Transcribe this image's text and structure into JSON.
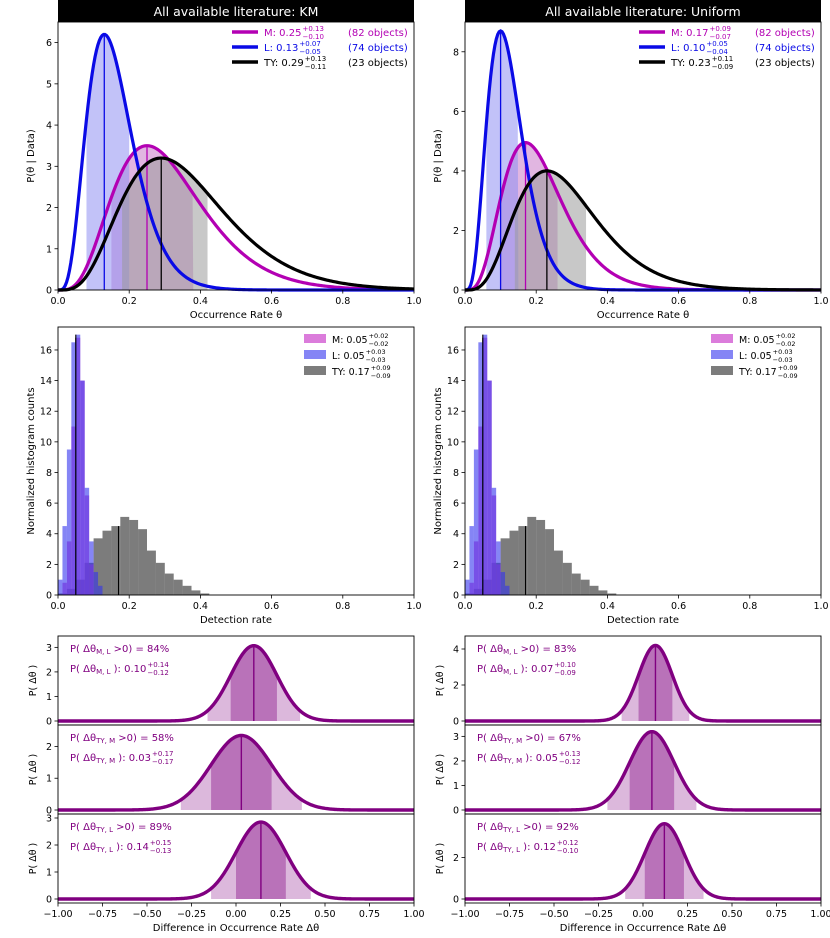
{
  "chart_data": [
    {
      "id": "km_posterior",
      "type": "line",
      "title": "All available literature: KM",
      "xlabel": "Occurrence Rate θ",
      "ylabel": "P(θ | Data)",
      "xlim": [
        0,
        1
      ],
      "ylim": [
        0,
        6.5
      ],
      "xticks": [
        0.0,
        0.2,
        0.4,
        0.6,
        0.8,
        1.0
      ],
      "yticks": [
        0,
        1,
        2,
        3,
        4,
        5,
        6
      ],
      "series": [
        {
          "name": "M",
          "mode": 0.25,
          "peak": 3.5,
          "lo": 0.15,
          "hi": 0.38,
          "plus": "+0.13",
          "minus": "−0.10",
          "count": "(82 objects)",
          "color": "#b300b3",
          "fill": "#c97ac9"
        },
        {
          "name": "L",
          "mode": 0.13,
          "peak": 6.2,
          "lo": 0.08,
          "hi": 0.2,
          "plus": "+0.07",
          "minus": "−0.05",
          "count": "(74 objects)",
          "color": "#0a0ae6",
          "fill": "#8f8ff2"
        },
        {
          "name": "TY",
          "mode": 0.29,
          "peak": 3.2,
          "lo": 0.18,
          "hi": 0.42,
          "plus": "+0.13",
          "minus": "−0.11",
          "count": "(23 objects)",
          "color": "#000000",
          "fill": "#9a9a9a"
        }
      ]
    },
    {
      "id": "uniform_posterior",
      "type": "line",
      "title": "All available literature: Uniform",
      "xlabel": "Occurrence Rate θ",
      "ylabel": "P(θ | Data)",
      "xlim": [
        0,
        1
      ],
      "ylim": [
        0,
        9.0
      ],
      "xticks": [
        0.0,
        0.2,
        0.4,
        0.6,
        0.8,
        1.0
      ],
      "yticks": [
        0,
        2,
        4,
        6,
        8
      ],
      "series": [
        {
          "name": "M",
          "mode": 0.17,
          "peak": 4.95,
          "lo": 0.1,
          "hi": 0.26,
          "plus": "+0.09",
          "minus": "−0.07",
          "count": "(82 objects)",
          "color": "#b300b3",
          "fill": "#c97ac9"
        },
        {
          "name": "L",
          "mode": 0.1,
          "peak": 8.7,
          "lo": 0.06,
          "hi": 0.15,
          "plus": "+0.05",
          "minus": "−0.04",
          "count": "(74 objects)",
          "color": "#0a0ae6",
          "fill": "#8f8ff2"
        },
        {
          "name": "TY",
          "mode": 0.23,
          "peak": 4.0,
          "lo": 0.14,
          "hi": 0.34,
          "plus": "+0.11",
          "minus": "−0.09",
          "count": "(23 objects)",
          "color": "#000000",
          "fill": "#9a9a9a"
        }
      ]
    },
    {
      "id": "km_detection",
      "type": "bar",
      "xlabel": "Detection rate",
      "ylabel": "Normalized histogram counts",
      "xlim": [
        0,
        1
      ],
      "ylim": [
        0,
        17.5
      ],
      "xticks": [
        0.0,
        0.2,
        0.4,
        0.6,
        0.8,
        1.0
      ],
      "yticks": [
        0,
        2,
        4,
        6,
        8,
        10,
        12,
        14,
        16
      ],
      "bin_width": 0.0125,
      "series": [
        {
          "name": "M",
          "label": "M: 0.05",
          "plus": "+0.02",
          "minus": "−0.02",
          "color": "#cc44cc",
          "opacity": 0.7,
          "median": 0.05,
          "bins": [
            0.0125,
            0.025,
            0.0375,
            0.05,
            0.0625,
            0.075,
            0.0875
          ],
          "counts": [
            0.8,
            3.5,
            11.0,
            16.8,
            14.0,
            6.5,
            2.0
          ]
        },
        {
          "name": "L",
          "label": "L: 0.05",
          "plus": "+0.03",
          "minus": "−0.03",
          "color": "#3333ee",
          "opacity": 0.6,
          "median": 0.05,
          "bins": [
            0.0,
            0.0125,
            0.025,
            0.0375,
            0.05,
            0.0625,
            0.075,
            0.0875,
            0.1,
            0.1125
          ],
          "counts": [
            1.0,
            4.5,
            9.5,
            16.5,
            17.0,
            14.0,
            7.0,
            3.5,
            1.5,
            0.6
          ]
        },
        {
          "name": "TY",
          "label": "TY: 0.17",
          "plus": "+0.09",
          "minus": "−0.09",
          "color": "#111111",
          "opacity": 0.55,
          "median": 0.17,
          "bins": [
            0.0,
            0.025,
            0.05,
            0.075,
            0.1,
            0.125,
            0.15,
            0.175,
            0.2,
            0.225,
            0.25,
            0.275,
            0.3,
            0.325,
            0.35,
            0.375,
            0.4
          ],
          "counts": [
            0.1,
            0.4,
            1.0,
            2.1,
            3.7,
            4.2,
            4.5,
            5.1,
            4.9,
            4.3,
            2.9,
            2.1,
            1.4,
            1.0,
            0.6,
            0.3,
            0.1
          ]
        }
      ]
    },
    {
      "id": "uniform_detection",
      "type": "bar",
      "xlabel": "Detection rate",
      "ylabel": "Normalized histogram counts",
      "xlim": [
        0,
        1
      ],
      "ylim": [
        0,
        17.5
      ],
      "xticks": [
        0.0,
        0.2,
        0.4,
        0.6,
        0.8,
        1.0
      ],
      "yticks": [
        0,
        2,
        4,
        6,
        8,
        10,
        12,
        14,
        16
      ],
      "bin_width": 0.0125,
      "series": [
        {
          "name": "M",
          "label": "M: 0.05",
          "plus": "+0.02",
          "minus": "−0.02",
          "color": "#cc44cc",
          "opacity": 0.7,
          "median": 0.05,
          "bins": [
            0.0125,
            0.025,
            0.0375,
            0.05,
            0.0625,
            0.075,
            0.0875
          ],
          "counts": [
            0.8,
            3.5,
            11.0,
            16.8,
            14.0,
            6.5,
            2.0
          ]
        },
        {
          "name": "L",
          "label": "L: 0.05",
          "plus": "+0.03",
          "minus": "−0.03",
          "color": "#3333ee",
          "opacity": 0.6,
          "median": 0.05,
          "bins": [
            0.0,
            0.0125,
            0.025,
            0.0375,
            0.05,
            0.0625,
            0.075,
            0.0875,
            0.1,
            0.1125
          ],
          "counts": [
            1.0,
            4.5,
            9.5,
            16.5,
            17.0,
            14.0,
            7.0,
            3.5,
            1.5,
            0.6
          ]
        },
        {
          "name": "TY",
          "label": "TY: 0.17",
          "plus": "+0.09",
          "minus": "−0.09",
          "color": "#111111",
          "opacity": 0.55,
          "median": 0.17,
          "bins": [
            0.0,
            0.025,
            0.05,
            0.075,
            0.1,
            0.125,
            0.15,
            0.175,
            0.2,
            0.225,
            0.25,
            0.275,
            0.3,
            0.325,
            0.35,
            0.375,
            0.4
          ],
          "counts": [
            0.1,
            0.4,
            1.0,
            2.1,
            3.7,
            4.2,
            4.5,
            5.1,
            4.9,
            4.3,
            2.9,
            2.1,
            1.4,
            1.0,
            0.6,
            0.3,
            0.1
          ]
        }
      ]
    },
    {
      "id": "km_differences",
      "type": "area",
      "xlabel": "Difference in Occurrence Rate Δθ",
      "ylabel": "P( Δθ )",
      "xlim": [
        -1,
        1
      ],
      "xticks": [
        -1.0,
        -0.75,
        -0.5,
        -0.25,
        0.0,
        0.25,
        0.5,
        0.75,
        1.0
      ],
      "xtick_labels": [
        "−1.00",
        "−0.75",
        "−0.50",
        "−0.25",
        "0.00",
        "0.25",
        "0.50",
        "0.75",
        "1.00"
      ],
      "color": "#800080",
      "panels": [
        {
          "sub": "M, L",
          "prob": "84%",
          "value": "0.10",
          "plus": "+0.14",
          "minus": "−0.12",
          "mean": 0.1,
          "sigma": 0.13,
          "ymax": 3.3,
          "yticks": [
            0,
            1,
            2,
            3
          ]
        },
        {
          "sub": "TY, M",
          "prob": "58%",
          "value": "0.03",
          "plus": "+0.17",
          "minus": "−0.17",
          "mean": 0.03,
          "sigma": 0.17,
          "ymax": 2.55,
          "yticks": [
            0,
            1,
            2
          ]
        },
        {
          "sub": "TY, L",
          "prob": "89%",
          "value": "0.14",
          "plus": "+0.15",
          "minus": "−0.13",
          "mean": 0.14,
          "sigma": 0.14,
          "ymax": 3.0,
          "yticks": [
            0,
            1,
            2,
            3
          ]
        }
      ]
    },
    {
      "id": "uniform_differences",
      "type": "area",
      "xlabel": "Difference in Occurrence Rate Δθ",
      "ylabel": "P( Δθ )",
      "xlim": [
        -1,
        1
      ],
      "xticks": [
        -1.0,
        -0.75,
        -0.5,
        -0.25,
        0.0,
        0.25,
        0.5,
        0.75,
        1.0
      ],
      "xtick_labels": [
        "−1.00",
        "−0.75",
        "−0.50",
        "−0.25",
        "0.00",
        "0.25",
        "0.50",
        "0.75",
        "1.00"
      ],
      "color": "#800080",
      "panels": [
        {
          "sub": "M, L",
          "prob": "83%",
          "value": "0.07",
          "plus": "+0.10",
          "minus": "−0.09",
          "mean": 0.07,
          "sigma": 0.095,
          "ymax": 4.5,
          "yticks": [
            0,
            2,
            4
          ]
        },
        {
          "sub": "TY, M",
          "prob": "67%",
          "value": "0.05",
          "plus": "+0.13",
          "minus": "−0.12",
          "mean": 0.05,
          "sigma": 0.125,
          "ymax": 3.3,
          "yticks": [
            0,
            1,
            2,
            3
          ]
        },
        {
          "sub": "TY, L",
          "prob": "92%",
          "value": "0.12",
          "plus": "+0.12",
          "minus": "−0.10",
          "mean": 0.12,
          "sigma": 0.11,
          "ymax": 3.9,
          "yticks": [
            0,
            2
          ]
        }
      ]
    }
  ]
}
